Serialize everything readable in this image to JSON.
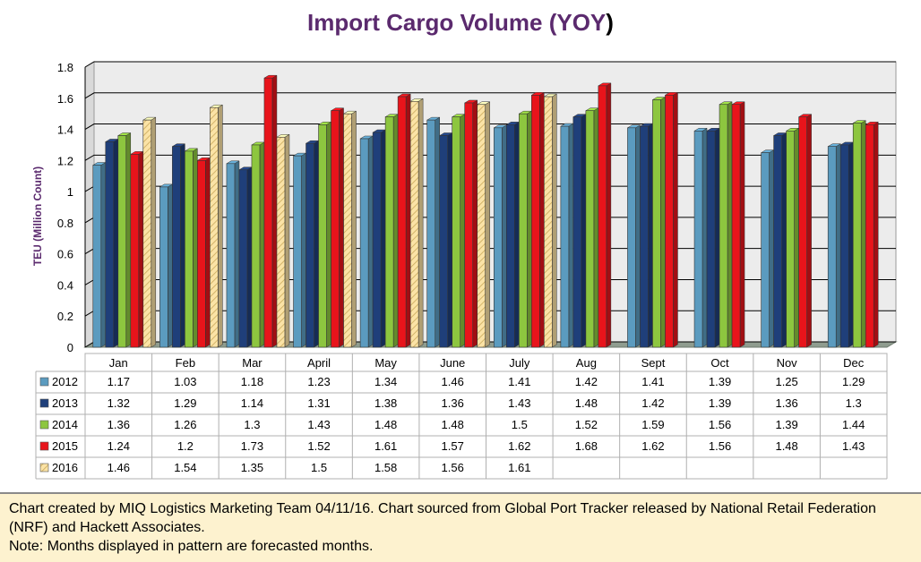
{
  "title_main": "Import Cargo Volume (YOY",
  "title_paren": ")",
  "footer": {
    "line1": "Chart created by MIQ Logistics Marketing Team 04/11/16. Chart sourced from Global Port Tracker released by National Retail Federation (NRF) and Hackett Associates.",
    "line2": "Note: Months displayed in pattern are forecasted months."
  },
  "chart_data": {
    "type": "bar",
    "title": "Import Cargo Volume (YOY)",
    "xlabel": "",
    "ylabel": "TEU (Million Count)",
    "ylim": [
      0,
      1.8
    ],
    "yticks": [
      "0",
      "0.2",
      "0.4",
      "0.6",
      "0.8",
      "1",
      "1.2",
      "1.4",
      "1.6",
      "1.8"
    ],
    "grid": true,
    "legend": "data-table",
    "categories": [
      "Jan",
      "Feb",
      "Mar",
      "April",
      "May",
      "June",
      "July",
      "Aug",
      "Sept",
      "Oct",
      "Nov",
      "Dec"
    ],
    "series": [
      {
        "name": "2012",
        "color": "#5b9bbf",
        "values": [
          1.17,
          1.03,
          1.18,
          1.23,
          1.34,
          1.46,
          1.41,
          1.42,
          1.41,
          1.39,
          1.25,
          1.29
        ],
        "labels": [
          "1.17",
          "1.03",
          "1.18",
          "1.23",
          "1.34",
          "1.46",
          "1.41",
          "1.42",
          "1.41",
          "1.39",
          "1.25",
          "1.29"
        ]
      },
      {
        "name": "2013",
        "color": "#1f3f7a",
        "values": [
          1.32,
          1.29,
          1.14,
          1.31,
          1.38,
          1.36,
          1.43,
          1.48,
          1.42,
          1.39,
          1.36,
          1.3
        ],
        "labels": [
          "1.32",
          "1.29",
          "1.14",
          "1.31",
          "1.38",
          "1.36",
          "1.43",
          "1.48",
          "1.42",
          "1.39",
          "1.36",
          "1.3"
        ]
      },
      {
        "name": "2014",
        "color": "#8dc63f",
        "values": [
          1.36,
          1.26,
          1.3,
          1.43,
          1.48,
          1.48,
          1.5,
          1.52,
          1.59,
          1.56,
          1.39,
          1.44
        ],
        "labels": [
          "1.36",
          "1.26",
          "1.3",
          "1.43",
          "1.48",
          "1.48",
          "1.5",
          "1.52",
          "1.59",
          "1.56",
          "1.39",
          "1.44"
        ]
      },
      {
        "name": "2015",
        "color": "#e8141b",
        "values": [
          1.24,
          1.2,
          1.73,
          1.52,
          1.61,
          1.57,
          1.62,
          1.68,
          1.62,
          1.56,
          1.48,
          1.43
        ],
        "labels": [
          "1.24",
          "1.2",
          "1.73",
          "1.52",
          "1.61",
          "1.57",
          "1.62",
          "1.68",
          "1.62",
          "1.56",
          "1.48",
          "1.43"
        ]
      },
      {
        "name": "2016",
        "color": "#fbe3a6",
        "forecast_pattern": true,
        "values": [
          1.46,
          1.54,
          1.35,
          1.5,
          1.58,
          1.56,
          1.61,
          null,
          null,
          null,
          null,
          null
        ],
        "labels": [
          "1.46",
          "1.54",
          "1.35",
          "1.5",
          "1.58",
          "1.56",
          "1.61",
          "",
          "",
          "",
          "",
          ""
        ]
      }
    ]
  }
}
